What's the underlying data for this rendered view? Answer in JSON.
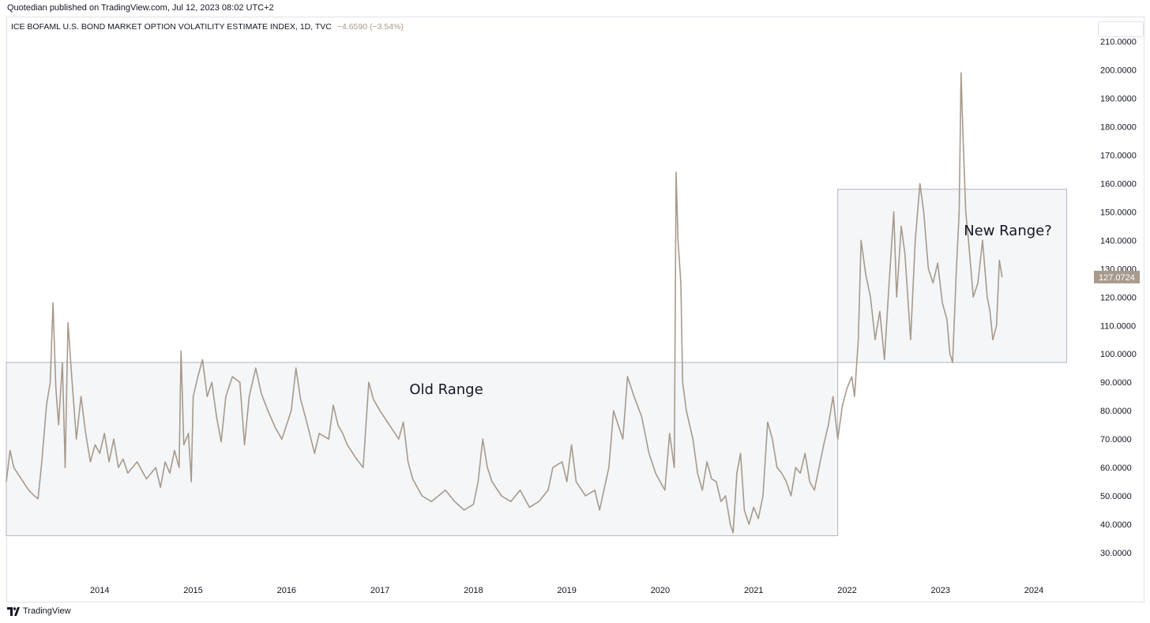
{
  "header": {
    "publisher": "Quotedian published on TradingView.com, Jul 12, 2023 08:02 UTC+2",
    "symbol": "ICE BOFAML U.S. BOND MARKET OPTION VOLATILITY ESTIMATE INDEX, 1D, TVC",
    "change": "−4.6590 (−3.54%)"
  },
  "footer": {
    "brand": "TradingView"
  },
  "colors": {
    "line": "#a89a8c",
    "box_fill": "#f4f6f8",
    "box_border": "#b2b5be",
    "price_tag": "#a89a8c"
  },
  "chart_data": {
    "type": "line",
    "ylim": [
      30,
      210
    ],
    "x_range": [
      2013.0,
      2024.6
    ],
    "y_ticks": [
      "30.0000",
      "40.0000",
      "50.0000",
      "60.0000",
      "70.0000",
      "80.0000",
      "90.0000",
      "100.0000",
      "110.0000",
      "120.0000",
      "130.0000",
      "140.0000",
      "150.0000",
      "160.0000",
      "170.0000",
      "180.0000",
      "190.0000",
      "200.0000",
      "210.0000"
    ],
    "x_ticks": [
      "2014",
      "2015",
      "2016",
      "2017",
      "2018",
      "2019",
      "2020",
      "2021",
      "2022",
      "2023",
      "2024"
    ],
    "last_value": "127.0724",
    "annotations": [
      {
        "label": "Old Range",
        "x0": 2013.0,
        "x1": 2021.9,
        "y0": 36,
        "y1": 97
      },
      {
        "label": "New Range?",
        "x0": 2021.9,
        "x1": 2024.35,
        "y0": 97,
        "y1": 158
      }
    ],
    "series": [
      {
        "values": [
          [
            2013.0,
            55
          ],
          [
            2013.04,
            66
          ],
          [
            2013.08,
            60
          ],
          [
            2013.12,
            58
          ],
          [
            2013.18,
            55
          ],
          [
            2013.24,
            52
          ],
          [
            2013.3,
            50
          ],
          [
            2013.34,
            49
          ],
          [
            2013.38,
            62
          ],
          [
            2013.43,
            82
          ],
          [
            2013.47,
            90
          ],
          [
            2013.5,
            118
          ],
          [
            2013.53,
            88
          ],
          [
            2013.56,
            75
          ],
          [
            2013.6,
            97
          ],
          [
            2013.63,
            60
          ],
          [
            2013.66,
            111
          ],
          [
            2013.7,
            92
          ],
          [
            2013.75,
            70
          ],
          [
            2013.8,
            85
          ],
          [
            2013.85,
            72
          ],
          [
            2013.9,
            62
          ],
          [
            2013.95,
            68
          ],
          [
            2014.0,
            65
          ],
          [
            2014.05,
            72
          ],
          [
            2014.1,
            62
          ],
          [
            2014.15,
            70
          ],
          [
            2014.2,
            60
          ],
          [
            2014.25,
            63
          ],
          [
            2014.3,
            58
          ],
          [
            2014.4,
            62
          ],
          [
            2014.5,
            56
          ],
          [
            2014.6,
            60
          ],
          [
            2014.65,
            53
          ],
          [
            2014.7,
            62
          ],
          [
            2014.75,
            58
          ],
          [
            2014.8,
            66
          ],
          [
            2014.85,
            60
          ],
          [
            2014.87,
            101
          ],
          [
            2014.9,
            68
          ],
          [
            2014.95,
            72
          ],
          [
            2014.98,
            55
          ],
          [
            2015.0,
            85
          ],
          [
            2015.05,
            92
          ],
          [
            2015.1,
            98
          ],
          [
            2015.15,
            85
          ],
          [
            2015.2,
            90
          ],
          [
            2015.25,
            78
          ],
          [
            2015.3,
            69
          ],
          [
            2015.35,
            85
          ],
          [
            2015.42,
            92
          ],
          [
            2015.5,
            90
          ],
          [
            2015.55,
            68
          ],
          [
            2015.6,
            85
          ],
          [
            2015.67,
            95
          ],
          [
            2015.73,
            86
          ],
          [
            2015.8,
            80
          ],
          [
            2015.88,
            74
          ],
          [
            2015.95,
            70
          ],
          [
            2016.05,
            80
          ],
          [
            2016.1,
            95
          ],
          [
            2016.15,
            84
          ],
          [
            2016.2,
            78
          ],
          [
            2016.3,
            65
          ],
          [
            2016.35,
            72
          ],
          [
            2016.45,
            70
          ],
          [
            2016.5,
            82
          ],
          [
            2016.55,
            75
          ],
          [
            2016.6,
            72
          ],
          [
            2016.65,
            68
          ],
          [
            2016.75,
            63
          ],
          [
            2016.82,
            60
          ],
          [
            2016.88,
            90
          ],
          [
            2016.93,
            84
          ],
          [
            2017.0,
            80
          ],
          [
            2017.1,
            75
          ],
          [
            2017.2,
            70
          ],
          [
            2017.25,
            76
          ],
          [
            2017.3,
            62
          ],
          [
            2017.35,
            56
          ],
          [
            2017.45,
            50
          ],
          [
            2017.55,
            48
          ],
          [
            2017.7,
            52
          ],
          [
            2017.8,
            48
          ],
          [
            2017.9,
            45
          ],
          [
            2018.0,
            47
          ],
          [
            2018.05,
            55
          ],
          [
            2018.1,
            70
          ],
          [
            2018.15,
            60
          ],
          [
            2018.2,
            55
          ],
          [
            2018.3,
            50
          ],
          [
            2018.4,
            48
          ],
          [
            2018.5,
            52
          ],
          [
            2018.6,
            46
          ],
          [
            2018.7,
            48
          ],
          [
            2018.8,
            52
          ],
          [
            2018.85,
            60
          ],
          [
            2018.95,
            62
          ],
          [
            2019.0,
            55
          ],
          [
            2019.05,
            68
          ],
          [
            2019.1,
            55
          ],
          [
            2019.2,
            50
          ],
          [
            2019.3,
            52
          ],
          [
            2019.35,
            45
          ],
          [
            2019.45,
            60
          ],
          [
            2019.5,
            80
          ],
          [
            2019.6,
            70
          ],
          [
            2019.65,
            92
          ],
          [
            2019.72,
            85
          ],
          [
            2019.8,
            78
          ],
          [
            2019.88,
            65
          ],
          [
            2019.95,
            58
          ],
          [
            2020.0,
            55
          ],
          [
            2020.05,
            52
          ],
          [
            2020.1,
            72
          ],
          [
            2020.15,
            60
          ],
          [
            2020.17,
            164
          ],
          [
            2020.19,
            140
          ],
          [
            2020.22,
            125
          ],
          [
            2020.24,
            90
          ],
          [
            2020.28,
            80
          ],
          [
            2020.35,
            70
          ],
          [
            2020.4,
            58
          ],
          [
            2020.45,
            52
          ],
          [
            2020.5,
            62
          ],
          [
            2020.55,
            56
          ],
          [
            2020.6,
            55
          ],
          [
            2020.65,
            48
          ],
          [
            2020.7,
            50
          ],
          [
            2020.75,
            40
          ],
          [
            2020.78,
            37
          ],
          [
            2020.82,
            58
          ],
          [
            2020.86,
            65
          ],
          [
            2020.9,
            45
          ],
          [
            2020.95,
            40
          ],
          [
            2021.0,
            46
          ],
          [
            2021.05,
            42
          ],
          [
            2021.1,
            50
          ],
          [
            2021.15,
            76
          ],
          [
            2021.2,
            70
          ],
          [
            2021.25,
            60
          ],
          [
            2021.3,
            58
          ],
          [
            2021.35,
            55
          ],
          [
            2021.4,
            50
          ],
          [
            2021.45,
            60
          ],
          [
            2021.5,
            58
          ],
          [
            2021.55,
            65
          ],
          [
            2021.6,
            55
          ],
          [
            2021.65,
            52
          ],
          [
            2021.7,
            60
          ],
          [
            2021.75,
            68
          ],
          [
            2021.8,
            75
          ],
          [
            2021.85,
            85
          ],
          [
            2021.9,
            70
          ],
          [
            2021.95,
            82
          ],
          [
            2022.0,
            88
          ],
          [
            2022.05,
            92
          ],
          [
            2022.08,
            85
          ],
          [
            2022.12,
            105
          ],
          [
            2022.15,
            140
          ],
          [
            2022.2,
            128
          ],
          [
            2022.25,
            120
          ],
          [
            2022.3,
            105
          ],
          [
            2022.35,
            115
          ],
          [
            2022.4,
            98
          ],
          [
            2022.45,
            125
          ],
          [
            2022.5,
            150
          ],
          [
            2022.53,
            120
          ],
          [
            2022.58,
            145
          ],
          [
            2022.62,
            135
          ],
          [
            2022.68,
            105
          ],
          [
            2022.73,
            140
          ],
          [
            2022.78,
            160
          ],
          [
            2022.82,
            150
          ],
          [
            2022.87,
            130
          ],
          [
            2022.92,
            125
          ],
          [
            2022.97,
            132
          ],
          [
            2023.02,
            118
          ],
          [
            2023.07,
            112
          ],
          [
            2023.1,
            100
          ],
          [
            2023.13,
            97
          ],
          [
            2023.17,
            130
          ],
          [
            2023.2,
            150
          ],
          [
            2023.22,
            199
          ],
          [
            2023.24,
            178
          ],
          [
            2023.27,
            150
          ],
          [
            2023.3,
            140
          ],
          [
            2023.35,
            120
          ],
          [
            2023.4,
            125
          ],
          [
            2023.45,
            140
          ],
          [
            2023.5,
            120
          ],
          [
            2023.53,
            115
          ],
          [
            2023.56,
            105
          ],
          [
            2023.6,
            110
          ],
          [
            2023.63,
            133
          ],
          [
            2023.66,
            127
          ]
        ]
      }
    ]
  }
}
